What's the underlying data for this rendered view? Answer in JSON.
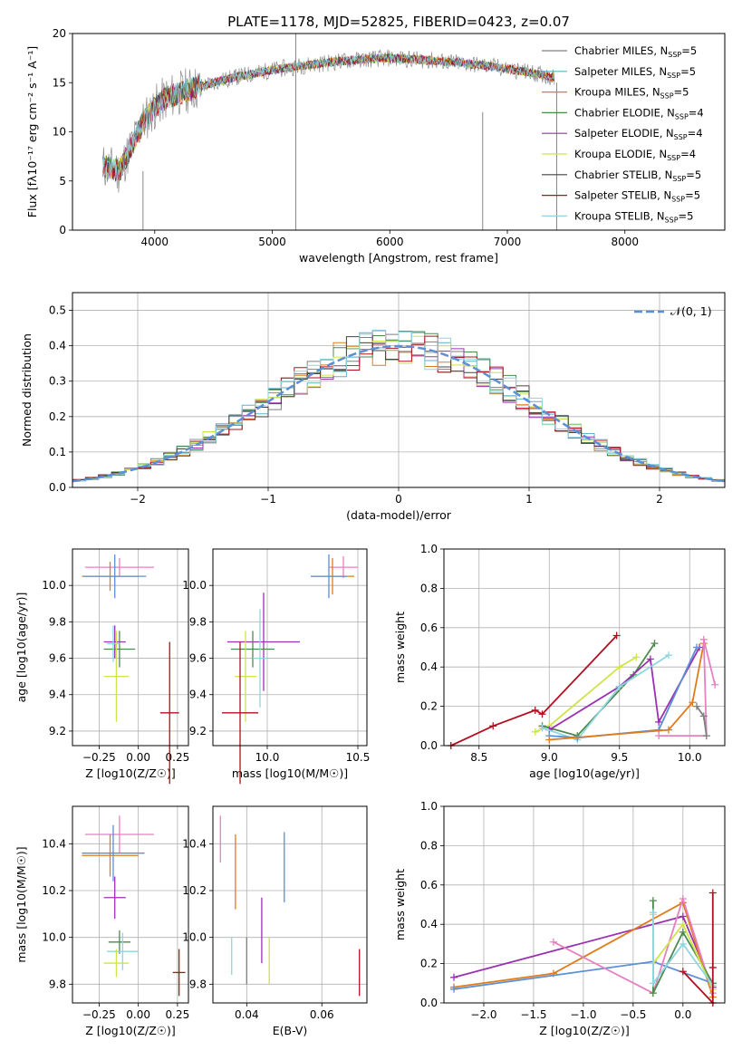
{
  "figure_title": "PLATE=1178, MJD=52825, FIBERID=0423, z=0.07",
  "colors": {
    "chabrier_miles": "#7f7f7f",
    "salpeter_miles": "#5ab4c8",
    "kroupa_miles": "#e07b1c",
    "chabrier_elodie": "#4d8a4d",
    "salpeter_elodie": "#9b30b0",
    "kroupa_elodie": "#cfe34a",
    "chabrier_stelib": "#444444",
    "salpeter_stelib": "#b01020",
    "kroupa_stelib": "#8fd6e0",
    "normal_curve": "#5b8fd6",
    "pink": "#e87fc0",
    "blue": "#5b8fd6"
  },
  "chart_data": [
    {
      "type": "line",
      "title": "PLATE=1178, MJD=52825, FIBERID=0423, z=0.07",
      "xlabel": "wavelength [Angstrom, rest frame]",
      "ylabel": "Flux [fλ10⁻¹⁷ erg cm⁻² s⁻¹ A⁻¹]",
      "xlim": [
        3300,
        8850
      ],
      "ylim": [
        0,
        20
      ],
      "xticks": [
        4000,
        5000,
        6000,
        7000,
        8000
      ],
      "yticks": [
        0,
        5,
        10,
        15,
        20
      ],
      "legend_position": "top-right",
      "series": [
        {
          "name": "Chabrier MILES, N_SSP=5",
          "color_key": "chabrier_miles"
        },
        {
          "name": "Salpeter MILES, N_SSP=5",
          "color_key": "salpeter_miles"
        },
        {
          "name": "Kroupa MILES, N_SSP=5",
          "color_key": "kroupa_miles"
        },
        {
          "name": "Chabrier ELODIE, N_SSP=4",
          "color_key": "chabrier_elodie"
        },
        {
          "name": "Salpeter ELODIE, N_SSP=4",
          "color_key": "salpeter_elodie"
        },
        {
          "name": "Kroupa ELODIE, N_SSP=4",
          "color_key": "kroupa_elodie"
        },
        {
          "name": "Chabrier STELIB, N_SSP=5",
          "color_key": "chabrier_stelib"
        },
        {
          "name": "Salpeter STELIB, N_SSP=5",
          "color_key": "salpeter_stelib"
        },
        {
          "name": "Kroupa STELIB, N_SSP=5",
          "color_key": "kroupa_stelib"
        }
      ],
      "continuum": {
        "x": [
          3560,
          3700,
          3800,
          3900,
          4000,
          4100,
          4300,
          4500,
          4700,
          5000,
          5300,
          5600,
          5800,
          6000,
          6300,
          6600,
          6900,
          7100,
          7300,
          7400
        ],
        "y": [
          6.5,
          6.0,
          8.5,
          11.0,
          12.5,
          13.5,
          14.3,
          15.0,
          15.6,
          16.3,
          16.8,
          17.2,
          17.4,
          17.5,
          17.3,
          17.0,
          16.6,
          16.2,
          15.8,
          15.5
        ]
      },
      "spikes": [
        {
          "x": 5200,
          "y_low": 0,
          "y_high": 20
        },
        {
          "x": 6790,
          "y_low": 0,
          "y_high": 12
        },
        {
          "x": 3900,
          "y_low": 0,
          "y_high": 6
        },
        {
          "x": 7420,
          "y_low": 0,
          "y_high": 15
        }
      ]
    },
    {
      "type": "histogram",
      "xlabel": "(data-model)/error",
      "ylabel": "Normed distribution",
      "xlim": [
        -2.5,
        2.5
      ],
      "ylim": [
        0,
        0.55
      ],
      "xticks": [
        -2,
        -1,
        0,
        1,
        2
      ],
      "yticks": [
        0.0,
        0.1,
        0.2,
        0.3,
        0.4,
        0.5
      ],
      "legend": [
        {
          "name": "𝒩(0, 1)",
          "style": "dashed",
          "color_key": "normal_curve"
        }
      ],
      "bin_width": 0.1
    },
    {
      "type": "scatter",
      "xlabel": "Z [log10(Z/Z☉)]",
      "ylabel": "age  [log10(age/yr)]",
      "xlim": [
        -0.42,
        0.32
      ],
      "ylim": [
        9.12,
        10.2
      ],
      "xticks": [
        -0.25,
        0.0,
        0.25
      ],
      "yticks": [
        9.2,
        9.4,
        9.6,
        9.8,
        10.0
      ],
      "points": [
        {
          "x": -0.12,
          "y": 10.1,
          "xerr": 0.22,
          "yerr": 0.05,
          "color_key": "pink"
        },
        {
          "x": -0.18,
          "y": 10.05,
          "xerr": 0.18,
          "yerr": 0.08,
          "color_key": "kroupa_miles"
        },
        {
          "x": -0.15,
          "y": 10.05,
          "xerr": 0.2,
          "yerr": 0.12,
          "color_key": "blue"
        },
        {
          "x": -0.15,
          "y": 9.69,
          "xerr": 0.07,
          "yerr": 0.09,
          "color_key": "salpeter_elodie"
        },
        {
          "x": -0.12,
          "y": 9.65,
          "xerr": 0.1,
          "yerr": 0.1,
          "color_key": "chabrier_elodie"
        },
        {
          "x": -0.16,
          "y": 9.68,
          "xerr": 0.04,
          "yerr": 0.1,
          "color_key": "kroupa_stelib"
        },
        {
          "x": -0.14,
          "y": 9.5,
          "xerr": 0.08,
          "yerr": 0.25,
          "color_key": "kroupa_elodie"
        },
        {
          "x": 0.2,
          "y": 9.3,
          "xerr": 0.06,
          "yerr": 0.39,
          "color_key": "salpeter_stelib"
        }
      ]
    },
    {
      "type": "scatter",
      "xlabel": "mass [log10(M/M☉)]",
      "ylabel": "",
      "xlim": [
        9.7,
        10.55
      ],
      "ylim": [
        9.12,
        10.2
      ],
      "xticks": [
        10.0,
        10.5
      ],
      "yticks": [
        9.2,
        9.4,
        9.6,
        9.8,
        10.0
      ],
      "points": [
        {
          "x": 10.42,
          "y": 10.1,
          "xerr": 0.08,
          "yerr": 0.06,
          "color_key": "pink"
        },
        {
          "x": 10.36,
          "y": 10.05,
          "xerr": 0.12,
          "yerr": 0.1,
          "color_key": "kroupa_miles"
        },
        {
          "x": 10.34,
          "y": 10.05,
          "xerr": 0.1,
          "yerr": 0.12,
          "color_key": "blue"
        },
        {
          "x": 9.98,
          "y": 9.69,
          "xerr": 0.2,
          "yerr": 0.27,
          "color_key": "salpeter_elodie"
        },
        {
          "x": 9.92,
          "y": 9.65,
          "xerr": 0.12,
          "yerr": 0.1,
          "color_key": "chabrier_elodie"
        },
        {
          "x": 9.96,
          "y": 9.6,
          "xerr": 0.04,
          "yerr": 0.27,
          "color_key": "kroupa_stelib"
        },
        {
          "x": 9.88,
          "y": 9.5,
          "xerr": 0.06,
          "yerr": 0.25,
          "color_key": "kroupa_elodie"
        },
        {
          "x": 9.85,
          "y": 9.3,
          "xerr": 0.1,
          "yerr": 0.39,
          "color_key": "salpeter_stelib"
        }
      ]
    },
    {
      "type": "line",
      "xlabel": "age  [log10(age/yr)]",
      "ylabel": "mass weight",
      "xlim": [
        8.25,
        10.25
      ],
      "ylim": [
        0,
        1
      ],
      "xticks": [
        8.5,
        9.0,
        9.5,
        10.0
      ],
      "yticks": [
        0.0,
        0.2,
        0.4,
        0.6,
        0.8,
        1.0
      ],
      "series": [
        {
          "color_key": "salpeter_stelib",
          "x": [
            8.3,
            8.6,
            8.9,
            8.95,
            9.48
          ],
          "y": [
            0.0,
            0.1,
            0.18,
            0.16,
            0.56
          ]
        },
        {
          "color_key": "kroupa_elodie",
          "x": [
            8.9,
            9.0,
            9.5,
            9.62
          ],
          "y": [
            0.07,
            0.1,
            0.4,
            0.45
          ]
        },
        {
          "color_key": "chabrier_elodie",
          "x": [
            8.95,
            9.2,
            9.6,
            9.75
          ],
          "y": [
            0.1,
            0.05,
            0.36,
            0.52
          ]
        },
        {
          "color_key": "salpeter_elodie",
          "x": [
            9.0,
            9.5,
            9.72,
            9.78,
            10.07
          ],
          "y": [
            0.08,
            0.3,
            0.44,
            0.12,
            0.5
          ]
        },
        {
          "color_key": "kroupa_stelib",
          "x": [
            8.95,
            9.2,
            9.5,
            9.85
          ],
          "y": [
            0.09,
            0.03,
            0.3,
            0.46
          ]
        },
        {
          "color_key": "blue",
          "x": [
            9.0,
            9.2,
            9.78,
            10.05
          ],
          "y": [
            0.05,
            0.04,
            0.08,
            0.5
          ]
        },
        {
          "color_key": "kroupa_miles",
          "x": [
            9.0,
            9.85,
            10.02,
            10.1
          ],
          "y": [
            0.03,
            0.08,
            0.22,
            0.52
          ]
        },
        {
          "color_key": "pink",
          "x": [
            9.78,
            10.12,
            10.1,
            10.18
          ],
          "y": [
            0.05,
            0.05,
            0.54,
            0.31
          ]
        },
        {
          "color_key": "chabrier_miles",
          "x": [
            10.05,
            10.1,
            10.12
          ],
          "y": [
            0.2,
            0.15,
            0.05
          ]
        }
      ]
    },
    {
      "type": "scatter",
      "xlabel": "Z [log10(Z/Z☉)]",
      "ylabel": "mass [log10(M/M☉)]",
      "xlim": [
        -0.42,
        0.32
      ],
      "ylim": [
        9.72,
        10.56
      ],
      "xticks": [
        -0.25,
        0.0,
        0.25
      ],
      "yticks": [
        9.8,
        10.0,
        10.2,
        10.4
      ],
      "points": [
        {
          "x": -0.12,
          "y": 10.44,
          "xerr": 0.22,
          "yerr": 0.08,
          "color_key": "pink"
        },
        {
          "x": -0.18,
          "y": 10.35,
          "xerr": 0.18,
          "yerr": 0.09,
          "color_key": "kroupa_miles"
        },
        {
          "x": -0.16,
          "y": 10.36,
          "xerr": 0.2,
          "yerr": 0.12,
          "color_key": "blue"
        },
        {
          "x": -0.15,
          "y": 10.17,
          "xerr": 0.07,
          "yerr": 0.09,
          "color_key": "salpeter_elodie"
        },
        {
          "x": -0.12,
          "y": 9.98,
          "xerr": 0.07,
          "yerr": 0.05,
          "color_key": "chabrier_elodie"
        },
        {
          "x": -0.1,
          "y": 9.94,
          "xerr": 0.1,
          "yerr": 0.08,
          "color_key": "kroupa_stelib"
        },
        {
          "x": -0.14,
          "y": 9.89,
          "xerr": 0.08,
          "yerr": 0.06,
          "color_key": "kroupa_elodie"
        },
        {
          "x": 0.26,
          "y": 9.85,
          "xerr": 0.04,
          "yerr": 0.1,
          "color_key": "salpeter_stelib"
        }
      ]
    },
    {
      "type": "scatter",
      "xlabel": "E(B-V)",
      "ylabel": "",
      "xlim": [
        0.031,
        0.072
      ],
      "ylim": [
        9.72,
        10.56
      ],
      "xticks": [
        0.04,
        0.06
      ],
      "yticks": [
        9.8,
        10.0,
        10.2,
        10.4
      ],
      "points": [
        {
          "x": 0.033,
          "y": 10.42,
          "yerr": 0.1,
          "color_key": "pink"
        },
        {
          "x": 0.037,
          "y": 10.28,
          "yerr": 0.16,
          "color_key": "kroupa_miles"
        },
        {
          "x": 0.05,
          "y": 10.3,
          "yerr": 0.15,
          "color_key": "blue"
        },
        {
          "x": 0.044,
          "y": 10.03,
          "yerr": 0.14,
          "color_key": "salpeter_elodie"
        },
        {
          "x": 0.036,
          "y": 9.92,
          "yerr": 0.08,
          "color_key": "kroupa_stelib"
        },
        {
          "x": 0.04,
          "y": 9.9,
          "yerr": 0.1,
          "color_key": "chabrier_miles"
        },
        {
          "x": 0.046,
          "y": 9.9,
          "yerr": 0.1,
          "color_key": "kroupa_elodie"
        },
        {
          "x": 0.07,
          "y": 9.85,
          "yerr": 0.1,
          "color_key": "salpeter_stelib"
        }
      ]
    },
    {
      "type": "line",
      "xlabel": "Z [log10(Z/Z☉)]",
      "ylabel": "mass weight",
      "xlim": [
        -2.4,
        0.42
      ],
      "ylim": [
        0,
        1
      ],
      "xticks": [
        -2.0,
        -1.5,
        -1.0,
        -0.5,
        0.0
      ],
      "yticks": [
        0.0,
        0.2,
        0.4,
        0.6,
        0.8,
        1.0
      ],
      "series": [
        {
          "color_key": "salpeter_elodie",
          "x": [
            -2.3,
            0.0,
            0.3
          ],
          "y": [
            0.13,
            0.44,
            0.08
          ]
        },
        {
          "color_key": "kroupa_miles",
          "x": [
            -2.3,
            -1.3,
            0.0,
            0.3
          ],
          "y": [
            0.08,
            0.15,
            0.51,
            0.03
          ]
        },
        {
          "color_key": "blue",
          "x": [
            -2.3,
            -0.3,
            0.3
          ],
          "y": [
            0.07,
            0.21,
            0.1
          ]
        },
        {
          "color_key": "pink",
          "x": [
            -1.3,
            -0.3,
            0.0,
            0.3
          ],
          "y": [
            0.31,
            0.05,
            0.53,
            0.05
          ]
        },
        {
          "color_key": "chabrier_elodie",
          "x": [
            -0.3,
            -0.3,
            0.0,
            0.3
          ],
          "y": [
            0.52,
            0.05,
            0.36,
            0.1
          ]
        },
        {
          "color_key": "kroupa_elodie",
          "x": [
            -0.3,
            -0.3,
            0.0,
            0.3
          ],
          "y": [
            0.45,
            0.2,
            0.4,
            0.07
          ]
        },
        {
          "color_key": "kroupa_stelib",
          "x": [
            -0.3,
            -0.3,
            0.0,
            0.3
          ],
          "y": [
            0.46,
            0.1,
            0.3,
            0.09
          ]
        },
        {
          "color_key": "salpeter_stelib",
          "x": [
            0.0,
            0.3,
            0.3,
            0.3
          ],
          "y": [
            0.16,
            0.0,
            0.18,
            0.56
          ]
        }
      ]
    }
  ]
}
